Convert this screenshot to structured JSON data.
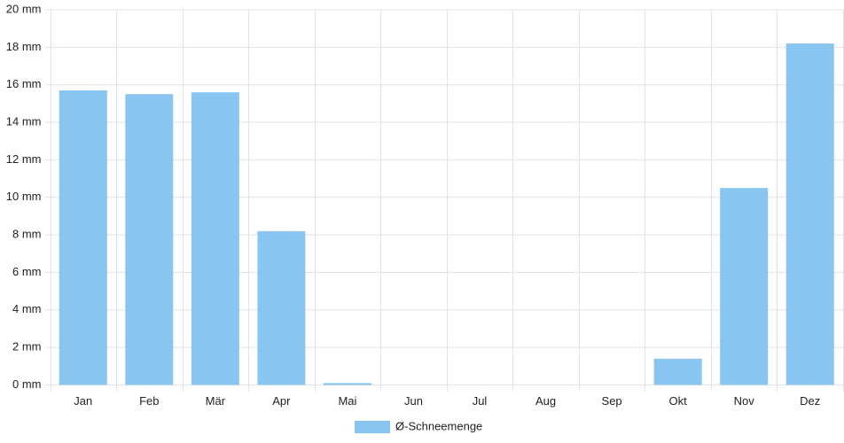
{
  "chart_data": {
    "type": "bar",
    "categories": [
      "Jan",
      "Feb",
      "Mär",
      "Apr",
      "Mai",
      "Jun",
      "Jul",
      "Aug",
      "Sep",
      "Okt",
      "Nov",
      "Dez"
    ],
    "series": [
      {
        "name": "Ø-Schneemenge",
        "color": "#88c6f1",
        "values": [
          15.7,
          15.5,
          15.6,
          8.2,
          0.1,
          0,
          0,
          0,
          0,
          1.4,
          10.5,
          18.2
        ]
      }
    ],
    "ylim": [
      0,
      20
    ],
    "yticks": [
      {
        "value": 0,
        "label": "0 mm"
      },
      {
        "value": 2,
        "label": "2 mm"
      },
      {
        "value": 4,
        "label": "4 mm"
      },
      {
        "value": 6,
        "label": "6 mm"
      },
      {
        "value": 8,
        "label": "8 mm"
      },
      {
        "value": 10,
        "label": "10 mm"
      },
      {
        "value": 12,
        "label": "12 mm"
      },
      {
        "value": 14,
        "label": "14 mm"
      },
      {
        "value": 16,
        "label": "16 mm"
      },
      {
        "value": 18,
        "label": "18 mm"
      },
      {
        "value": 20,
        "label": "20 mm"
      }
    ],
    "grid": true,
    "legend": "bottom"
  }
}
